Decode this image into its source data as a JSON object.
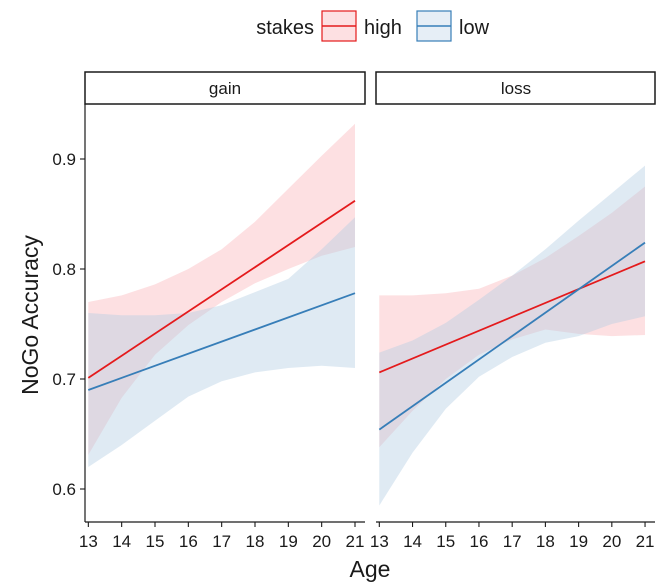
{
  "chart_data": {
    "type": "line",
    "xlabel": "Age",
    "ylabel": "NoGo Accuracy",
    "legend": {
      "title": "stakes",
      "position": "top",
      "entries": [
        {
          "name": "high",
          "line_color": "#e41a1c",
          "fill_color": "#fbb4b9"
        },
        {
          "name": "low",
          "line_color": "#377eb8",
          "fill_color": "#b3cde3"
        }
      ]
    },
    "xlim": [
      12.9,
      21.3
    ],
    "ylim": [
      0.57,
      0.95
    ],
    "x_ticks": [
      13,
      14,
      15,
      16,
      17,
      18,
      19,
      20,
      21
    ],
    "y_ticks": [
      0.6,
      0.7,
      0.8,
      0.9
    ],
    "y_tick_labels": [
      "0.6",
      "0.7",
      "0.8",
      "0.9"
    ],
    "grid": false,
    "panels": [
      {
        "title": "gain",
        "series": [
          {
            "name": "high",
            "x": [
              13,
              21
            ],
            "y": [
              0.701,
              0.862
            ],
            "ci_x": [
              13,
              14,
              15,
              16,
              17,
              18,
              19,
              20,
              21
            ],
            "ci_lower": [
              0.631,
              0.683,
              0.722,
              0.749,
              0.77,
              0.787,
              0.8,
              0.812,
              0.82
            ],
            "ci_upper": [
              0.77,
              0.776,
              0.786,
              0.8,
              0.818,
              0.843,
              0.873,
              0.903,
              0.932
            ]
          },
          {
            "name": "low",
            "x": [
              13,
              21
            ],
            "y": [
              0.69,
              0.778
            ],
            "ci_x": [
              13,
              14,
              15,
              16,
              17,
              18,
              19,
              20,
              21
            ],
            "ci_lower": [
              0.62,
              0.64,
              0.662,
              0.684,
              0.698,
              0.706,
              0.71,
              0.712,
              0.71
            ],
            "ci_upper": [
              0.76,
              0.758,
              0.758,
              0.76,
              0.767,
              0.779,
              0.791,
              0.818,
              0.847
            ]
          }
        ]
      },
      {
        "title": "loss",
        "series": [
          {
            "name": "high",
            "x": [
              13,
              21
            ],
            "y": [
              0.706,
              0.807
            ],
            "ci_x": [
              13,
              14,
              15,
              16,
              17,
              18,
              19,
              20,
              21
            ],
            "ci_lower": [
              0.638,
              0.671,
              0.7,
              0.722,
              0.736,
              0.745,
              0.741,
              0.739,
              0.74
            ],
            "ci_upper": [
              0.776,
              0.776,
              0.778,
              0.782,
              0.794,
              0.81,
              0.83,
              0.851,
              0.875
            ]
          },
          {
            "name": "low",
            "x": [
              13,
              21
            ],
            "y": [
              0.654,
              0.824
            ],
            "ci_x": [
              13,
              14,
              15,
              16,
              17,
              18,
              19,
              20,
              21
            ],
            "ci_lower": [
              0.585,
              0.633,
              0.673,
              0.702,
              0.72,
              0.733,
              0.739,
              0.75,
              0.757
            ],
            "ci_upper": [
              0.724,
              0.735,
              0.751,
              0.772,
              0.794,
              0.818,
              0.844,
              0.869,
              0.894
            ]
          }
        ]
      }
    ]
  }
}
